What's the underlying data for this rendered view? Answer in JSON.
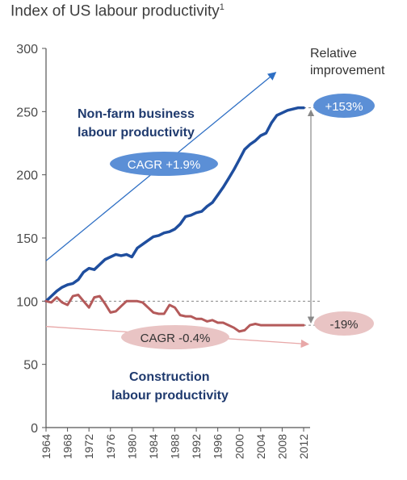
{
  "title": "Index of US labour productivity",
  "title_footnote": "1",
  "colors": {
    "nonfarm": "#1f4e9e",
    "construction": "#b45a5a",
    "nonfarm_pill": "#5b8fd6",
    "construction_pill": "#e9c4c4",
    "arrow_blue": "#2e6fc4",
    "arrow_pink": "#e8a8a8",
    "axis": "#555555",
    "ref_line": "#888888"
  },
  "annotations": {
    "nonfarm_label_line1": "Non-farm business",
    "nonfarm_label_line2": "labour productivity",
    "construction_label_line1": "Construction",
    "construction_label_line2": "labour productivity",
    "nonfarm_cagr": "CAGR +1.9%",
    "construction_cagr": "CAGR -0.4%",
    "relative_line1": "Relative",
    "relative_line2": "improvement",
    "nonfarm_change": "+153%",
    "construction_change": "-19%"
  },
  "chart_data": {
    "type": "line",
    "title": "Index of US labour productivity",
    "xlabel": "",
    "ylabel": "",
    "ylim": [
      0,
      300
    ],
    "xlim": [
      1964,
      2012
    ],
    "y_ticks": [
      0,
      50,
      100,
      150,
      200,
      250,
      300
    ],
    "x_ticks": [
      1964,
      1968,
      1972,
      1976,
      1980,
      1984,
      1988,
      1992,
      1996,
      2000,
      2004,
      2008,
      2012
    ],
    "reference_line": 100,
    "grid": false,
    "series": [
      {
        "name": "Non-farm business labour productivity",
        "x": [
          1964,
          1965,
          1966,
          1967,
          1968,
          1969,
          1970,
          1971,
          1972,
          1973,
          1974,
          1975,
          1976,
          1977,
          1978,
          1979,
          1980,
          1981,
          1982,
          1983,
          1984,
          1985,
          1986,
          1987,
          1988,
          1989,
          1990,
          1991,
          1992,
          1993,
          1994,
          1995,
          1996,
          1997,
          1998,
          1999,
          2000,
          2001,
          2002,
          2003,
          2004,
          2005,
          2006,
          2007,
          2008,
          2009,
          2010,
          2011,
          2012
        ],
        "values": [
          100,
          104,
          108,
          111,
          113,
          114,
          117,
          123,
          126,
          125,
          129,
          133,
          135,
          137,
          136,
          137,
          135,
          142,
          145,
          148,
          151,
          152,
          154,
          155,
          157,
          161,
          167,
          168,
          170,
          171,
          175,
          178,
          184,
          190,
          197,
          204,
          212,
          220,
          224,
          227,
          231,
          233,
          241,
          247,
          249,
          251,
          252,
          253,
          253
        ]
      },
      {
        "name": "Construction labour productivity",
        "x": [
          1964,
          1965,
          1966,
          1967,
          1968,
          1969,
          1970,
          1971,
          1972,
          1973,
          1974,
          1975,
          1976,
          1977,
          1978,
          1979,
          1980,
          1981,
          1982,
          1983,
          1984,
          1985,
          1986,
          1987,
          1988,
          1989,
          1990,
          1991,
          1992,
          1993,
          1994,
          1995,
          1996,
          1997,
          1998,
          1999,
          2000,
          2001,
          2002,
          2003,
          2004,
          2005,
          2006,
          2007,
          2008,
          2009,
          2010,
          2011,
          2012
        ],
        "values": [
          100,
          99,
          103,
          99,
          97,
          104,
          105,
          100,
          95,
          103,
          104,
          98,
          91,
          92,
          96,
          100,
          100,
          100,
          99,
          95,
          91,
          90,
          90,
          97,
          95,
          89,
          88,
          88,
          86,
          86,
          84,
          85,
          83,
          83,
          81,
          79,
          76,
          77,
          81,
          82,
          81,
          81,
          81,
          81,
          81,
          81,
          81,
          81,
          81
        ]
      }
    ],
    "changes": {
      "nonfarm": 153,
      "construction": -19
    },
    "cagr": {
      "nonfarm": 1.9,
      "construction": -0.4
    }
  }
}
